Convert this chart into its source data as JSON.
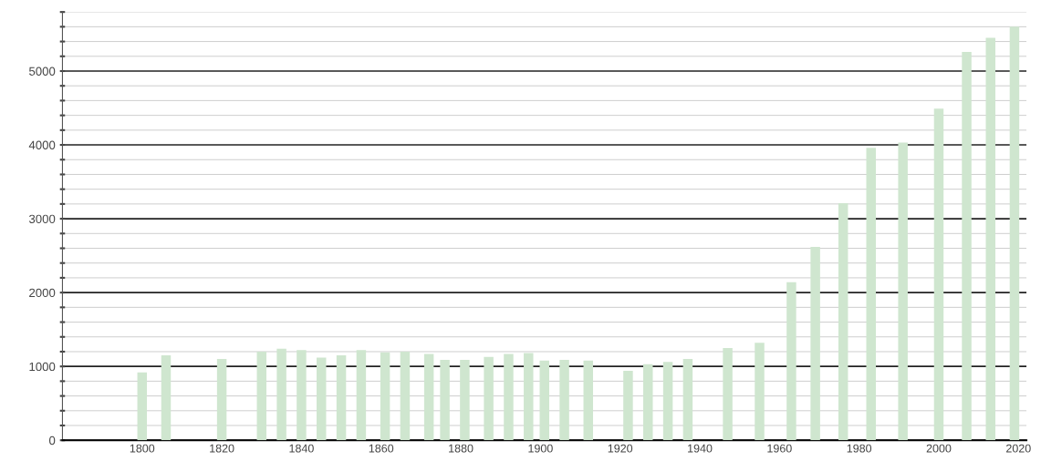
{
  "chart_data": {
    "type": "bar",
    "color": "#cfe6cf",
    "x": [
      1800,
      1806,
      1820,
      1830,
      1835,
      1840,
      1845,
      1850,
      1855,
      1861,
      1866,
      1872,
      1876,
      1881,
      1887,
      1892,
      1897,
      1901,
      1906,
      1912,
      1922,
      1927,
      1932,
      1937,
      1947,
      1955,
      1963,
      1969,
      1976,
      1983,
      1991,
      2000,
      2007,
      2013,
      2019
    ],
    "values": [
      920,
      1150,
      1100,
      1200,
      1240,
      1220,
      1120,
      1150,
      1220,
      1190,
      1200,
      1170,
      1090,
      1090,
      1130,
      1170,
      1180,
      1080,
      1090,
      1080,
      940,
      1030,
      1060,
      1100,
      1250,
      1320,
      2140,
      2620,
      3210,
      3960,
      4030,
      4490,
      5260,
      5450,
      5600
    ],
    "xlim": [
      1780,
      2022
    ],
    "xticks": [
      1800,
      1820,
      1840,
      1860,
      1880,
      1900,
      1920,
      1940,
      1960,
      1980,
      2000,
      2020
    ],
    "ylim": [
      0,
      5800
    ],
    "yticks": [
      0,
      {
        "value": 200,
        "label": null
      },
      {
        "value": 400,
        "label": null
      },
      {
        "value": 600,
        "label": null
      },
      {
        "value": 800,
        "label": null
      },
      1000,
      {
        "value": 1200,
        "label": null
      },
      {
        "value": 1400,
        "label": null
      },
      {
        "value": 1600,
        "label": null
      },
      {
        "value": 1800,
        "label": null
      },
      2000,
      {
        "value": 2200,
        "label": null
      },
      {
        "value": 2400,
        "label": null
      },
      {
        "value": 2600,
        "label": null
      },
      {
        "value": 2800,
        "label": null
      },
      3000,
      {
        "value": 3200,
        "label": null
      },
      {
        "value": 3400,
        "label": null
      },
      {
        "value": 3600,
        "label": null
      },
      {
        "value": 3800,
        "label": null
      },
      4000,
      {
        "value": 4200,
        "label": null
      },
      {
        "value": 4400,
        "label": null
      },
      {
        "value": 4600,
        "label": null
      },
      {
        "value": 4800,
        "label": null
      },
      5000,
      {
        "value": 5200,
        "label": null
      },
      {
        "value": 5400,
        "label": null
      },
      {
        "value": 5600,
        "label": null
      },
      {
        "value": 5800,
        "label": null
      }
    ],
    "grid": "y"
  }
}
